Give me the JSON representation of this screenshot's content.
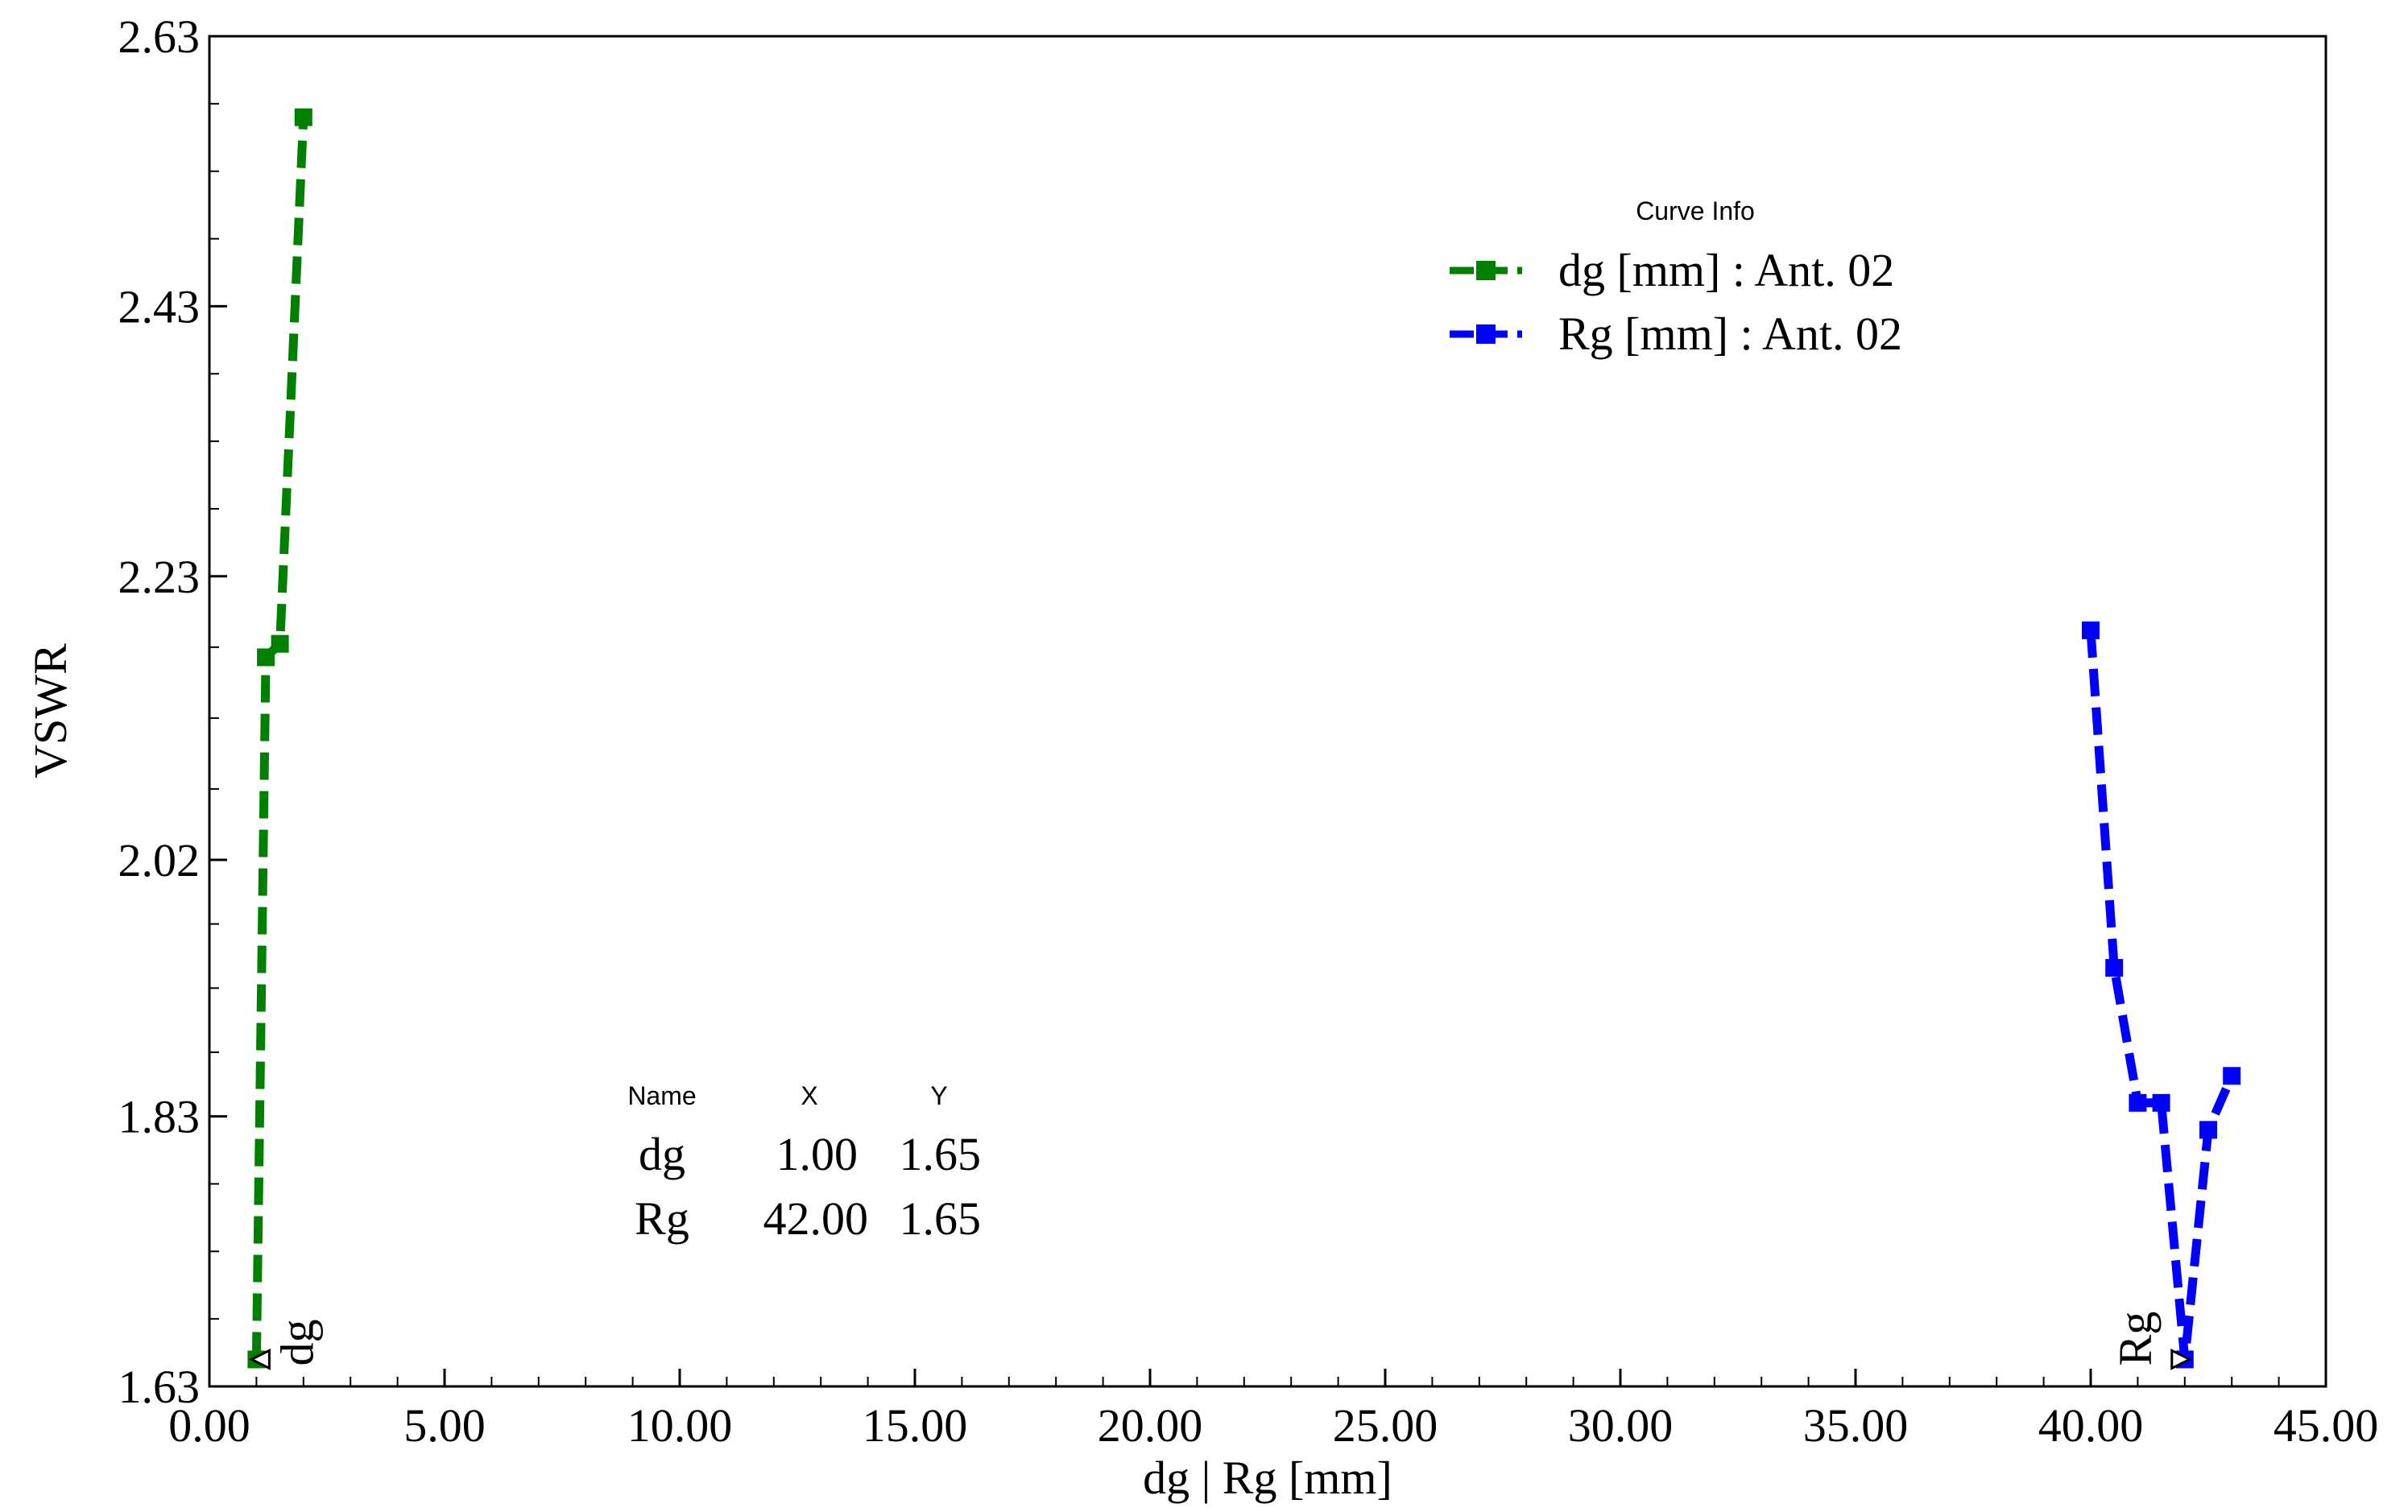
{
  "chart_data": {
    "type": "line",
    "xlabel": "dg | Rg [mm]",
    "ylabel": "VSWR",
    "xlim": [
      0,
      45
    ],
    "ylim": [
      1.63,
      2.63
    ],
    "x_ticks": [
      "0.00",
      "5.00",
      "10.00",
      "15.00",
      "20.00",
      "25.00",
      "30.00",
      "35.00",
      "40.00",
      "45.00"
    ],
    "x_tick_values": [
      0,
      5,
      10,
      15,
      20,
      25,
      30,
      35,
      40,
      45
    ],
    "y_ticks": [
      "1.63",
      "1.83",
      "2.02",
      "2.23",
      "2.43",
      "2.63"
    ],
    "y_tick_values": [
      1.63,
      1.83,
      2.02,
      2.23,
      2.43,
      2.63
    ],
    "grid": false,
    "legend": {
      "title": "Curve Info",
      "placement": "top-right"
    },
    "series": [
      {
        "name": "dg [mm] : Ant. 02",
        "color": "#008000",
        "line_style": "dashed",
        "x": [
          1.0,
          1.2,
          1.5,
          2.0
        ],
        "y": [
          1.65,
          2.17,
          2.18,
          2.57
        ]
      },
      {
        "name": "Rg [mm] : Ant. 02",
        "color": "#0000ff",
        "line_style": "dashed",
        "x": [
          40.0,
          40.5,
          41.0,
          41.5,
          42.0,
          42.5,
          43.0
        ],
        "y": [
          2.19,
          1.94,
          1.84,
          1.84,
          1.65,
          1.82,
          1.86
        ]
      }
    ],
    "markers": [
      {
        "label": "dg",
        "x": 1.0,
        "y": 1.65
      },
      {
        "label": "Rg",
        "x": 42.0,
        "y": 1.65
      }
    ],
    "marker_table": {
      "headers": [
        "Name",
        "X",
        "Y"
      ],
      "rows": [
        [
          "dg",
          "1.00",
          "1.65"
        ],
        [
          "Rg",
          "42.00",
          "1.65"
        ]
      ]
    }
  }
}
